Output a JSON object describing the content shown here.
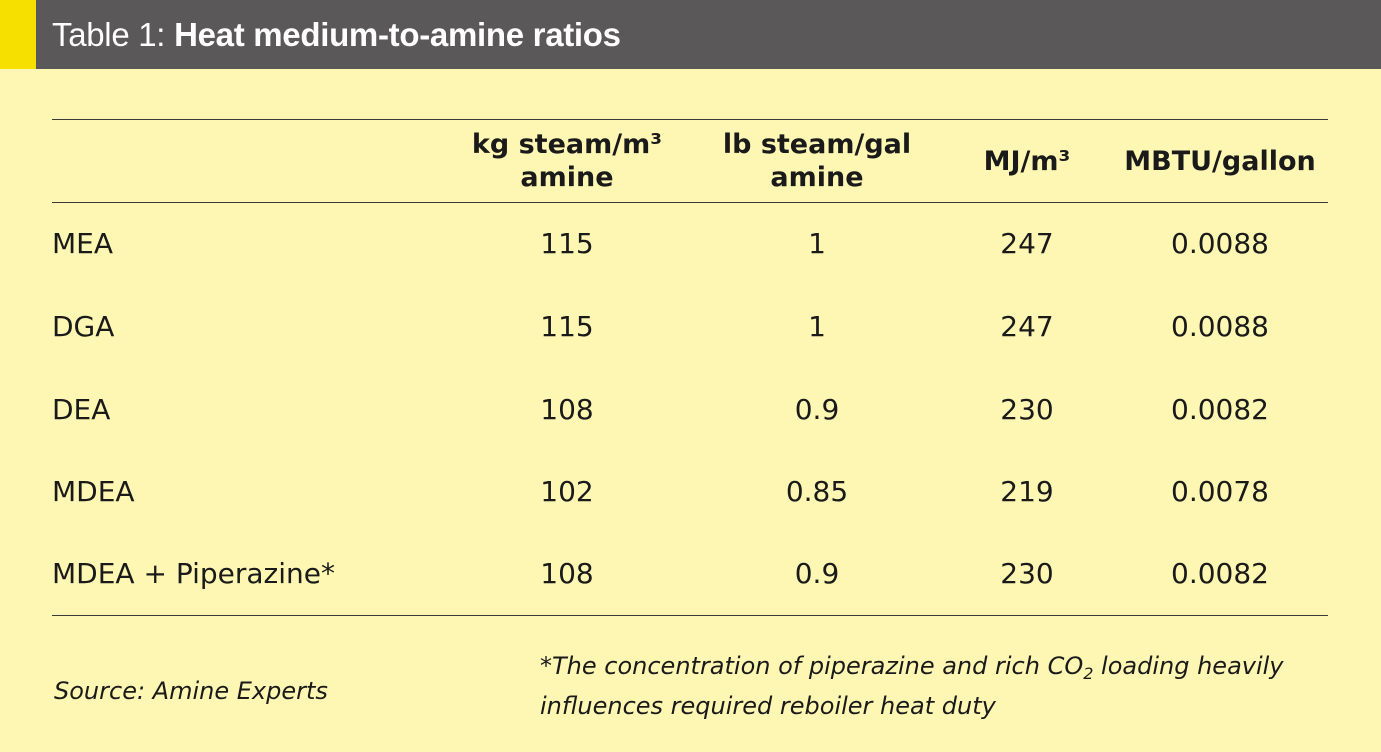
{
  "header": {
    "label": "Table 1:",
    "title": "Heat medium-to-amine ratios"
  },
  "table": {
    "columns": [
      {
        "line1": "kg steam/m³",
        "line2": "amine"
      },
      {
        "line1": "lb steam/gal",
        "line2": "amine"
      },
      {
        "line1": "MJ/m³",
        "line2": ""
      },
      {
        "line1": "MBTU/gallon",
        "line2": ""
      }
    ],
    "rows": [
      {
        "name": "MEA",
        "values": [
          "115",
          "1",
          "247",
          "0.0088"
        ]
      },
      {
        "name": "DGA",
        "values": [
          "115",
          "1",
          "247",
          "0.0088"
        ]
      },
      {
        "name": "DEA",
        "values": [
          "108",
          "0.9",
          "230",
          "0.0082"
        ]
      },
      {
        "name": "MDEA",
        "values": [
          "102",
          "0.85",
          "219",
          "0.0078"
        ]
      },
      {
        "name": "MDEA + Piperazine*",
        "values": [
          "108",
          "0.9",
          "230",
          "0.0082"
        ]
      }
    ]
  },
  "footer": {
    "source": "Source: Amine Experts",
    "note_before": "*The concentration of piperazine and rich CO",
    "note_sub": "2",
    "note_after": " loading heavily influences required reboiler heat duty"
  },
  "colors": {
    "background": "#fdf7b3",
    "header_bar": "#5a5859",
    "header_accent": "#f5e000"
  }
}
